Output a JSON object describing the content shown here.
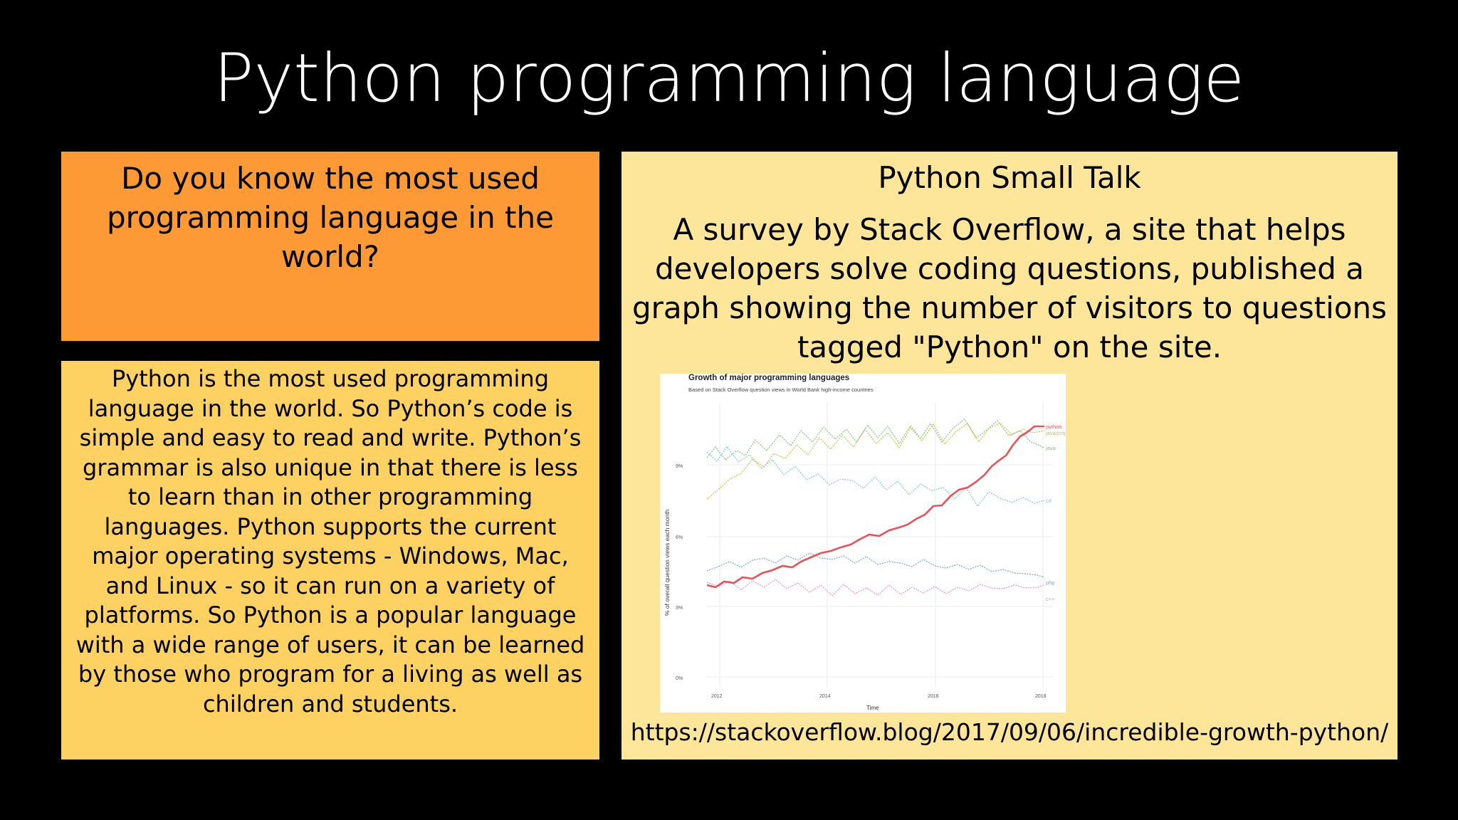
{
  "slide": {
    "title": "Python programming language"
  },
  "question_box": {
    "text": "Do you know the most used programming language in the world?"
  },
  "answer_box": {
    "text": "Python is the most used programming language in the world. So Python’s code is simple and easy to read and write. Python’s grammar is also unique in that there is less to learn than in other programming languages. Python supports the current major operating systems - Windows, Mac, and Linux - so it can run on a variety of platforms. So Python is a popular language with a wide range of users, it can be learned by those who program for a living as well as children and students."
  },
  "info_box": {
    "heading": "Python Small Talk",
    "body": "A survey by Stack Overflow, a site that helps developers solve coding questions, published a graph showing the number of visitors to questions tagged \"Python\" on the site.",
    "url": "https://stackoverflow.blog/2017/09/06/incredible-growth-python/"
  },
  "graph": {
    "title": "Growth of major programming languages",
    "subtitle": "Based on Stack Overflow question views in World Bank high-income countries",
    "ylabel": "% of overall question views each month",
    "xlabel": "Time",
    "yticks": [
      "0%",
      "3%",
      "6%",
      "9%"
    ],
    "xticks": [
      "2012",
      "2014",
      "2016",
      "2018"
    ],
    "series_labels": [
      "python",
      "javascript",
      "java",
      "c#",
      "php",
      "c++"
    ],
    "colors": {
      "python": "#e8525a",
      "javascript": "#c7c24a",
      "java": "#7fc08a",
      "csharp": "#7ecbc6",
      "php": "#7aa3d8",
      "cpp": "#e88fc7"
    }
  }
}
